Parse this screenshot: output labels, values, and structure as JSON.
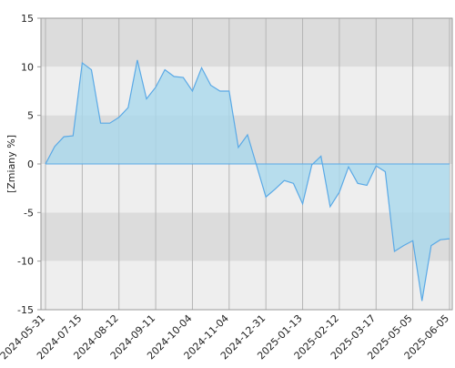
{
  "chart_data": {
    "type": "area",
    "y_label": "[Zmiany %]",
    "categories": [
      "2024-05-31",
      null,
      null,
      null,
      "2024-07-15",
      null,
      null,
      null,
      "2024-08-12",
      null,
      null,
      null,
      "2024-09-11",
      null,
      null,
      null,
      "2024-10-04",
      null,
      null,
      null,
      "2024-11-04",
      null,
      null,
      null,
      "2024-12-31",
      null,
      null,
      null,
      "2025-01-13",
      null,
      null,
      null,
      "2025-02-12",
      null,
      null,
      null,
      "2025-03-17",
      null,
      null,
      null,
      "2025-05-05",
      null,
      null,
      null,
      "2025-06-05"
    ],
    "values": [
      0,
      1.8,
      2.8,
      2.9,
      10.4,
      9.7,
      4.2,
      4.2,
      4.8,
      5.8,
      10.7,
      6.7,
      7.9,
      9.7,
      9.0,
      8.9,
      7.5,
      9.9,
      8.1,
      7.5,
      7.5,
      1.7,
      3.0,
      -0.2,
      -3.4,
      -2.6,
      -1.7,
      -2.0,
      -4.1,
      -0.1,
      0.8,
      -4.4,
      -2.9,
      -0.3,
      -2.0,
      -2.2,
      -0.2,
      -0.8,
      -9.0,
      -8.4,
      -7.9,
      -14.1,
      -8.4,
      -7.8,
      -7.7
    ],
    "color": "#5aa9e6",
    "fill": "#a9d8ec",
    "ylim": [
      -15,
      15
    ],
    "yticks": [
      15,
      10,
      5,
      0,
      -5,
      -10,
      -15
    ],
    "band_colors": [
      "#dcdcdc",
      "#eeeeee"
    ],
    "grid": true
  }
}
